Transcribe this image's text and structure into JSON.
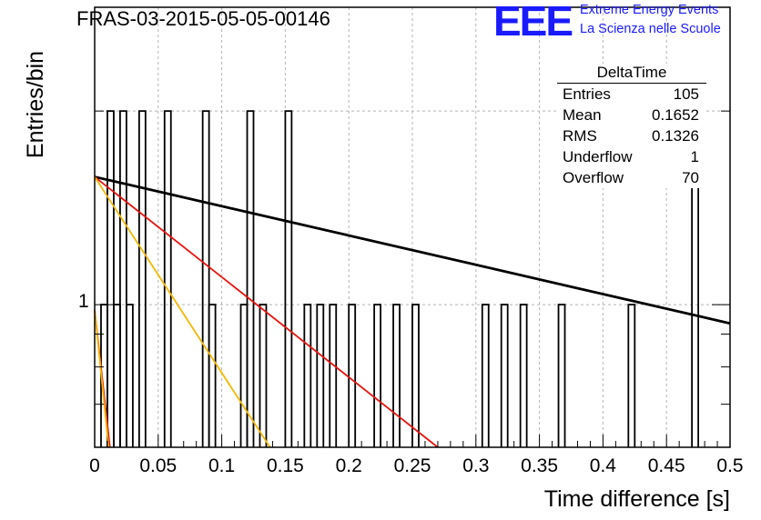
{
  "title": "FRAS-03-2015-05-05-00146",
  "logo": {
    "mark": "EEE",
    "line1": "Extreme Energy Events",
    "line2": "La Scienza nelle Scuole",
    "color": "#1a1aff"
  },
  "stats": {
    "name": "DeltaTime",
    "rows": [
      {
        "label": "Entries",
        "value": "105"
      },
      {
        "label": "Mean",
        "value": "0.1652"
      },
      {
        "label": "RMS",
        "value": "0.1326"
      },
      {
        "label": "Underflow",
        "value": "1"
      },
      {
        "label": "Overflow",
        "value": "70"
      }
    ]
  },
  "chart_data": {
    "type": "histogram",
    "title": "FRAS-03-2015-05-05-00146",
    "xlabel": "Time difference [s]",
    "ylabel": "Entries/bin",
    "xlim": [
      0,
      0.5
    ],
    "ylim": [
      0.6,
      2.9
    ],
    "yscale": "log",
    "grid": true,
    "bin_width": 0.005,
    "xticks": [
      "0",
      "0.05",
      "0.1",
      "0.15",
      "0.2",
      "0.25",
      "0.3",
      "0.35",
      "0.4",
      "0.45",
      "0.5"
    ],
    "yticks": [
      "1"
    ],
    "bins": [
      {
        "x": 0.005,
        "y": 1
      },
      {
        "x": 0.01,
        "y": 2
      },
      {
        "x": 0.015,
        "y": 1
      },
      {
        "x": 0.02,
        "y": 2
      },
      {
        "x": 0.025,
        "y": 1
      },
      {
        "x": 0.035,
        "y": 2
      },
      {
        "x": 0.055,
        "y": 2
      },
      {
        "x": 0.085,
        "y": 2
      },
      {
        "x": 0.09,
        "y": 1
      },
      {
        "x": 0.115,
        "y": 1
      },
      {
        "x": 0.12,
        "y": 2
      },
      {
        "x": 0.13,
        "y": 1
      },
      {
        "x": 0.15,
        "y": 2
      },
      {
        "x": 0.165,
        "y": 1
      },
      {
        "x": 0.175,
        "y": 1
      },
      {
        "x": 0.185,
        "y": 1
      },
      {
        "x": 0.2,
        "y": 1
      },
      {
        "x": 0.22,
        "y": 1
      },
      {
        "x": 0.235,
        "y": 1
      },
      {
        "x": 0.25,
        "y": 1
      },
      {
        "x": 0.305,
        "y": 1
      },
      {
        "x": 0.32,
        "y": 1
      },
      {
        "x": 0.335,
        "y": 1
      },
      {
        "x": 0.365,
        "y": 1
      },
      {
        "x": 0.42,
        "y": 1
      },
      {
        "x": 0.47,
        "y": 2
      }
    ],
    "curves": [
      {
        "color": "#000000",
        "points": [
          [
            0,
            1.58
          ],
          [
            0.5,
            0.935
          ]
        ]
      },
      {
        "color": "#e8130e",
        "points": [
          [
            0,
            1.58
          ],
          [
            0.27,
            0.6
          ]
        ]
      },
      {
        "color": "#f5b800",
        "points": [
          [
            0,
            1.58
          ],
          [
            0.138,
            0.6
          ]
        ]
      },
      {
        "color": "#e8130e",
        "points": [
          [
            0,
            0.98
          ],
          [
            0.012,
            0.6
          ]
        ]
      },
      {
        "color": "#f5b800",
        "points": [
          [
            0,
            0.98
          ],
          [
            0.011,
            0.6
          ]
        ]
      }
    ]
  }
}
